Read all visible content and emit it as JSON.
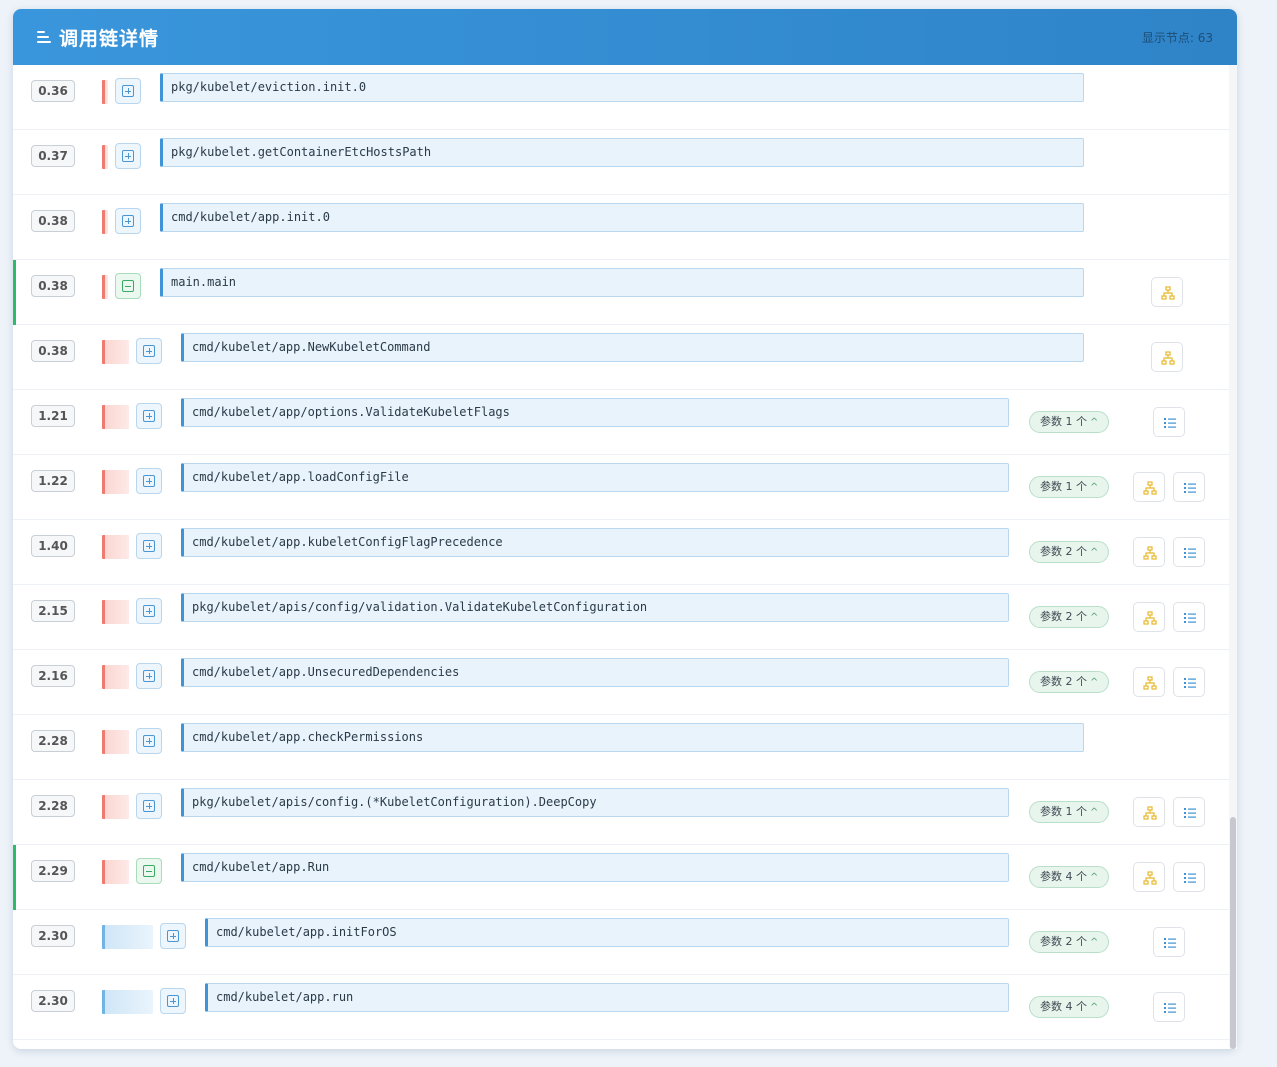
{
  "header": {
    "title": "调用链详情",
    "node_count": "显示节点: 63"
  },
  "params_suffix": "个",
  "rows": [
    {
      "time": "0.36",
      "func": "pkg/kubelet/eviction.init.0",
      "bar": "red",
      "bar_level": 0,
      "toggle": "plus",
      "indent": 0,
      "params": null,
      "tree": false,
      "list": false,
      "active": false
    },
    {
      "time": "0.37",
      "func": "pkg/kubelet.getContainerEtcHostsPath",
      "bar": "red",
      "bar_level": 0,
      "toggle": "plus",
      "indent": 0,
      "params": null,
      "tree": false,
      "list": false,
      "active": false
    },
    {
      "time": "0.38",
      "func": "cmd/kubelet/app.init.0",
      "bar": "red",
      "bar_level": 0,
      "toggle": "plus",
      "indent": 0,
      "params": null,
      "tree": false,
      "list": false,
      "active": false
    },
    {
      "time": "0.38",
      "func": "main.main",
      "bar": "red",
      "bar_level": 0,
      "toggle": "minus",
      "indent": 0,
      "params": null,
      "tree": true,
      "list": false,
      "active": true
    },
    {
      "time": "0.38",
      "func": "cmd/kubelet/app.NewKubeletCommand",
      "bar": "red",
      "bar_level": 1,
      "toggle": "plus",
      "indent": 1,
      "params": null,
      "tree": true,
      "list": false,
      "active": false
    },
    {
      "time": "1.21",
      "func": "cmd/kubelet/app/options.ValidateKubeletFlags",
      "bar": "red",
      "bar_level": 1,
      "toggle": "plus",
      "indent": 1,
      "params": "参数 1",
      "tree": false,
      "list": true,
      "active": false
    },
    {
      "time": "1.22",
      "func": "cmd/kubelet/app.loadConfigFile",
      "bar": "red",
      "bar_level": 1,
      "toggle": "plus",
      "indent": 1,
      "params": "参数 1",
      "tree": true,
      "list": true,
      "active": false
    },
    {
      "time": "1.40",
      "func": "cmd/kubelet/app.kubeletConfigFlagPrecedence",
      "bar": "red",
      "bar_level": 1,
      "toggle": "plus",
      "indent": 1,
      "params": "参数 2",
      "tree": true,
      "list": true,
      "active": false
    },
    {
      "time": "2.15",
      "func": "pkg/kubelet/apis/config/validation.ValidateKubeletConfiguration",
      "bar": "red",
      "bar_level": 1,
      "toggle": "plus",
      "indent": 1,
      "params": "参数 2",
      "tree": true,
      "list": true,
      "active": false
    },
    {
      "time": "2.16",
      "func": "cmd/kubelet/app.UnsecuredDependencies",
      "bar": "red",
      "bar_level": 1,
      "toggle": "plus",
      "indent": 1,
      "params": "参数 2",
      "tree": true,
      "list": true,
      "active": false
    },
    {
      "time": "2.28",
      "func": "cmd/kubelet/app.checkPermissions",
      "bar": "red",
      "bar_level": 1,
      "toggle": "plus",
      "indent": 1,
      "params": null,
      "tree": false,
      "list": false,
      "active": false
    },
    {
      "time": "2.28",
      "func": "pkg/kubelet/apis/config.(*KubeletConfiguration).DeepCopy",
      "bar": "red",
      "bar_level": 1,
      "toggle": "plus",
      "indent": 1,
      "params": "参数 1",
      "tree": true,
      "list": true,
      "active": false
    },
    {
      "time": "2.29",
      "func": "cmd/kubelet/app.Run",
      "bar": "red",
      "bar_level": 1,
      "toggle": "minus",
      "indent": 1,
      "params": "参数 4",
      "tree": true,
      "list": true,
      "active": true
    },
    {
      "time": "2.30",
      "func": "cmd/kubelet/app.initForOS",
      "bar": "blue",
      "bar_level": 2,
      "toggle": "plus",
      "indent": 2,
      "params": "参数 2",
      "tree": false,
      "list": true,
      "active": false
    },
    {
      "time": "2.30",
      "func": "cmd/kubelet/app.run",
      "bar": "blue",
      "bar_level": 2,
      "toggle": "plus",
      "indent": 2,
      "params": "参数 4",
      "tree": false,
      "list": true,
      "active": false
    }
  ],
  "colors": {
    "header": "#3a96dc",
    "active": "#2dbb6a",
    "bar_red": "#ef7a70",
    "bar_blue": "#6fb4e4",
    "tree_icon": "#e8b82a",
    "list_icon": "#3f93d6"
  },
  "icons": {
    "header": "menu-icon",
    "expand": "plus-square-icon",
    "collapse": "minus-square-icon",
    "tree": "hierarchy-icon",
    "list": "list-icon"
  }
}
